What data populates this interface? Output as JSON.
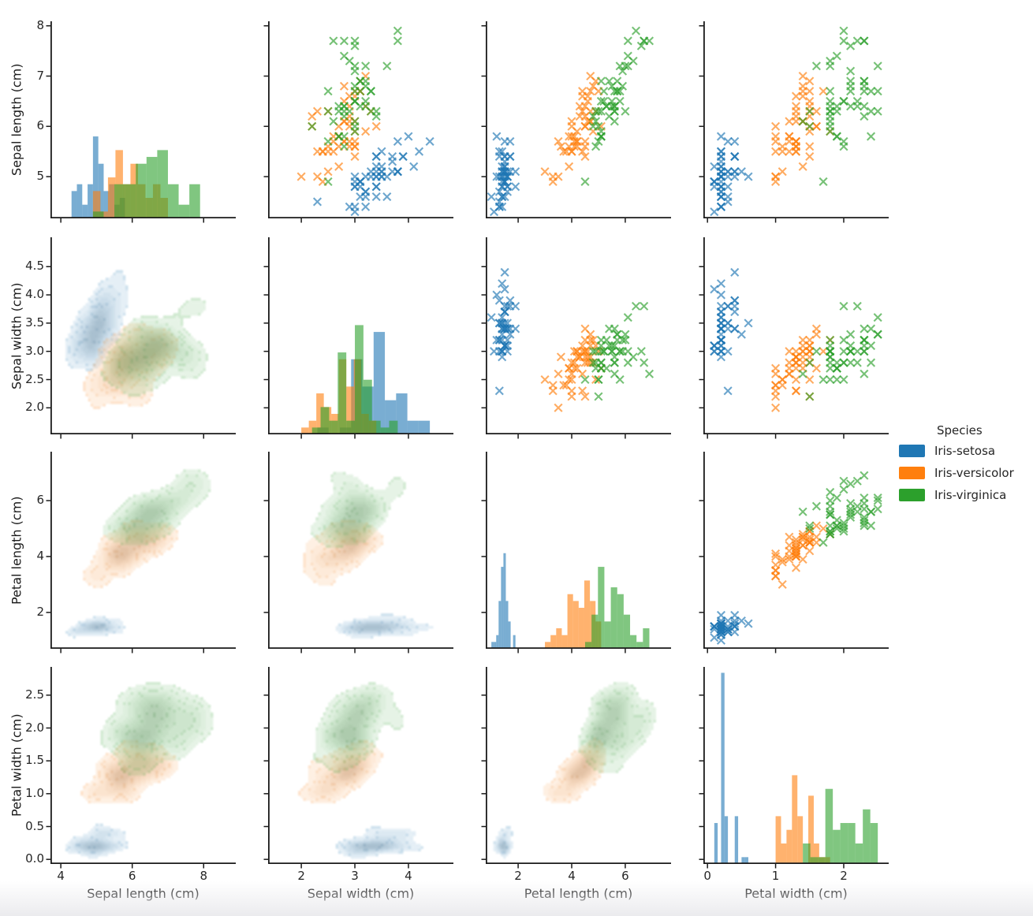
{
  "figure": {
    "background": "#ffffff"
  },
  "chart_data": {
    "type": "pairplot",
    "title": "",
    "variables": [
      "Sepal length (cm)",
      "Sepal width (cm)",
      "Petal length (cm)",
      "Petal width (cm)"
    ],
    "species": [
      "Iris-setosa",
      "Iris-versicolor",
      "Iris-virginica"
    ],
    "species_colors": {
      "Iris-setosa": "#1f77b4",
      "Iris-versicolor": "#ff7f0e",
      "Iris-virginica": "#2ca02c"
    },
    "grid": {
      "diagonal": "histogram",
      "upper_triangle": "scatter-x-markers",
      "lower_triangle": "filled-kde-contours",
      "marker": "x",
      "rows": 4,
      "cols": 4
    },
    "legend": {
      "title": "Species",
      "position": "right-middle",
      "entries": [
        {
          "label": "Iris-setosa",
          "color": "#1f77b4"
        },
        {
          "label": "Iris-versicolor",
          "color": "#ff7f0e"
        },
        {
          "label": "Iris-virginica",
          "color": "#2ca02c"
        }
      ]
    },
    "axes": {
      "x_ticks": [
        [
          4,
          6,
          8
        ],
        [
          2,
          3,
          4
        ],
        [
          2,
          4,
          6
        ],
        [
          0,
          1,
          2
        ]
      ],
      "x_tick_labels": [
        [
          "4",
          "6",
          "8"
        ],
        [
          "2",
          "3",
          "4"
        ],
        [
          "2",
          "4",
          "6"
        ],
        [
          "0",
          "1",
          "2"
        ]
      ],
      "y_ticks": [
        [
          5,
          6,
          7,
          8
        ],
        [
          2.0,
          2.5,
          3.0,
          3.5,
          4.0,
          4.5
        ],
        [
          2,
          4,
          6
        ],
        [
          0.0,
          0.5,
          1.0,
          1.5,
          2.0,
          2.5
        ]
      ],
      "y_tick_labels": [
        [
          "5",
          "6",
          "7",
          "8"
        ],
        [
          "2.0",
          "2.5",
          "3.0",
          "3.5",
          "4.0",
          "4.5"
        ],
        [
          "2",
          "4",
          "6"
        ],
        [
          "0.0",
          "0.5",
          "1.0",
          "1.5",
          "2.0",
          "2.5"
        ]
      ],
      "x_ranges": [
        [
          3.71,
          8.9
        ],
        [
          1.38,
          4.84
        ],
        [
          0.79,
          7.71
        ],
        [
          -0.06,
          2.66
        ]
      ],
      "y_ranges": [
        [
          4.17,
          8.09
        ],
        [
          1.53,
          5.02
        ],
        [
          0.7,
          7.75
        ],
        [
          -0.07,
          2.93
        ]
      ]
    },
    "columns": [
      "sepal_length_cm",
      "sepal_width_cm",
      "petal_length_cm",
      "petal_width_cm"
    ],
    "data": {
      "Iris-setosa": [
        [
          5.1,
          3.5,
          1.4,
          0.2
        ],
        [
          4.9,
          3.0,
          1.4,
          0.2
        ],
        [
          4.7,
          3.2,
          1.3,
          0.2
        ],
        [
          4.6,
          3.1,
          1.5,
          0.2
        ],
        [
          5.0,
          3.6,
          1.4,
          0.2
        ],
        [
          5.4,
          3.9,
          1.7,
          0.4
        ],
        [
          4.6,
          3.4,
          1.4,
          0.3
        ],
        [
          5.0,
          3.4,
          1.5,
          0.2
        ],
        [
          4.4,
          2.9,
          1.4,
          0.2
        ],
        [
          4.9,
          3.1,
          1.5,
          0.1
        ],
        [
          5.4,
          3.7,
          1.5,
          0.2
        ],
        [
          4.8,
          3.4,
          1.6,
          0.2
        ],
        [
          4.8,
          3.0,
          1.4,
          0.1
        ],
        [
          4.3,
          3.0,
          1.1,
          0.1
        ],
        [
          5.8,
          4.0,
          1.2,
          0.2
        ],
        [
          5.7,
          4.4,
          1.5,
          0.4
        ],
        [
          5.4,
          3.9,
          1.3,
          0.4
        ],
        [
          5.1,
          3.5,
          1.4,
          0.3
        ],
        [
          5.7,
          3.8,
          1.7,
          0.3
        ],
        [
          5.1,
          3.8,
          1.5,
          0.3
        ],
        [
          5.4,
          3.4,
          1.7,
          0.2
        ],
        [
          5.1,
          3.7,
          1.5,
          0.4
        ],
        [
          4.6,
          3.6,
          1.0,
          0.2
        ],
        [
          5.1,
          3.3,
          1.7,
          0.5
        ],
        [
          4.8,
          3.4,
          1.9,
          0.2
        ],
        [
          5.0,
          3.0,
          1.6,
          0.2
        ],
        [
          5.0,
          3.4,
          1.6,
          0.4
        ],
        [
          5.2,
          3.5,
          1.5,
          0.2
        ],
        [
          5.2,
          3.4,
          1.4,
          0.2
        ],
        [
          4.7,
          3.2,
          1.6,
          0.2
        ],
        [
          4.8,
          3.1,
          1.6,
          0.2
        ],
        [
          5.4,
          3.4,
          1.5,
          0.4
        ],
        [
          5.2,
          4.1,
          1.5,
          0.1
        ],
        [
          5.5,
          4.2,
          1.4,
          0.2
        ],
        [
          4.9,
          3.1,
          1.5,
          0.1
        ],
        [
          5.0,
          3.2,
          1.2,
          0.2
        ],
        [
          5.5,
          3.5,
          1.3,
          0.2
        ],
        [
          4.9,
          3.1,
          1.5,
          0.1
        ],
        [
          4.4,
          3.0,
          1.3,
          0.2
        ],
        [
          5.1,
          3.4,
          1.5,
          0.2
        ],
        [
          5.0,
          3.5,
          1.3,
          0.3
        ],
        [
          4.5,
          2.3,
          1.3,
          0.3
        ],
        [
          4.4,
          3.2,
          1.3,
          0.2
        ],
        [
          5.0,
          3.5,
          1.6,
          0.6
        ],
        [
          5.1,
          3.8,
          1.9,
          0.4
        ],
        [
          4.8,
          3.0,
          1.4,
          0.3
        ],
        [
          5.1,
          3.8,
          1.6,
          0.2
        ],
        [
          4.6,
          3.2,
          1.4,
          0.2
        ],
        [
          5.3,
          3.7,
          1.5,
          0.2
        ],
        [
          5.0,
          3.3,
          1.4,
          0.2
        ]
      ],
      "Iris-versicolor": [
        [
          7.0,
          3.2,
          4.7,
          1.4
        ],
        [
          6.4,
          3.2,
          4.5,
          1.5
        ],
        [
          6.9,
          3.1,
          4.9,
          1.5
        ],
        [
          5.5,
          2.3,
          4.0,
          1.3
        ],
        [
          6.5,
          2.8,
          4.6,
          1.5
        ],
        [
          5.7,
          2.8,
          4.5,
          1.3
        ],
        [
          6.3,
          3.3,
          4.7,
          1.6
        ],
        [
          4.9,
          2.4,
          3.3,
          1.0
        ],
        [
          6.6,
          2.9,
          4.6,
          1.3
        ],
        [
          5.2,
          2.7,
          3.9,
          1.4
        ],
        [
          5.0,
          2.0,
          3.5,
          1.0
        ],
        [
          5.9,
          3.0,
          4.2,
          1.5
        ],
        [
          6.0,
          2.2,
          4.0,
          1.0
        ],
        [
          6.1,
          2.9,
          4.7,
          1.4
        ],
        [
          5.6,
          2.9,
          3.6,
          1.3
        ],
        [
          6.7,
          3.1,
          4.4,
          1.4
        ],
        [
          5.6,
          3.0,
          4.5,
          1.5
        ],
        [
          5.8,
          2.7,
          4.1,
          1.0
        ],
        [
          6.2,
          2.2,
          4.5,
          1.5
        ],
        [
          5.6,
          2.5,
          3.9,
          1.1
        ],
        [
          5.9,
          3.2,
          4.8,
          1.8
        ],
        [
          6.1,
          2.8,
          4.0,
          1.3
        ],
        [
          6.3,
          2.5,
          4.9,
          1.5
        ],
        [
          6.1,
          2.8,
          4.7,
          1.2
        ],
        [
          6.4,
          2.9,
          4.3,
          1.3
        ],
        [
          6.6,
          3.0,
          4.4,
          1.4
        ],
        [
          6.8,
          2.8,
          4.8,
          1.4
        ],
        [
          6.7,
          3.0,
          5.0,
          1.7
        ],
        [
          6.0,
          2.9,
          4.5,
          1.5
        ],
        [
          5.7,
          2.6,
          3.5,
          1.0
        ],
        [
          5.5,
          2.4,
          3.8,
          1.1
        ],
        [
          5.5,
          2.4,
          3.7,
          1.0
        ],
        [
          5.8,
          2.7,
          3.9,
          1.2
        ],
        [
          6.0,
          2.7,
          5.1,
          1.6
        ],
        [
          5.4,
          3.0,
          4.5,
          1.5
        ],
        [
          6.0,
          3.4,
          4.5,
          1.6
        ],
        [
          6.7,
          3.1,
          4.7,
          1.5
        ],
        [
          6.3,
          2.3,
          4.4,
          1.3
        ],
        [
          5.6,
          3.0,
          4.1,
          1.3
        ],
        [
          5.5,
          2.5,
          4.0,
          1.3
        ],
        [
          5.5,
          2.6,
          4.4,
          1.2
        ],
        [
          6.1,
          3.0,
          4.6,
          1.4
        ],
        [
          5.8,
          2.6,
          4.0,
          1.2
        ],
        [
          5.0,
          2.3,
          3.3,
          1.0
        ],
        [
          5.6,
          2.7,
          4.2,
          1.3
        ],
        [
          5.7,
          3.0,
          4.2,
          1.2
        ],
        [
          5.7,
          2.9,
          4.2,
          1.3
        ],
        [
          6.2,
          2.9,
          4.3,
          1.3
        ],
        [
          5.1,
          2.5,
          3.0,
          1.1
        ],
        [
          5.7,
          2.8,
          4.1,
          1.3
        ]
      ],
      "Iris-virginica": [
        [
          6.3,
          3.3,
          6.0,
          2.5
        ],
        [
          5.8,
          2.7,
          5.1,
          1.9
        ],
        [
          7.1,
          3.0,
          5.9,
          2.1
        ],
        [
          6.3,
          2.9,
          5.6,
          1.8
        ],
        [
          6.5,
          3.0,
          5.8,
          2.2
        ],
        [
          7.6,
          3.0,
          6.6,
          2.1
        ],
        [
          4.9,
          2.5,
          4.5,
          1.7
        ],
        [
          7.3,
          2.9,
          6.3,
          1.8
        ],
        [
          6.7,
          2.5,
          5.8,
          1.8
        ],
        [
          7.2,
          3.6,
          6.1,
          2.5
        ],
        [
          6.5,
          3.2,
          5.1,
          2.0
        ],
        [
          6.4,
          2.7,
          5.3,
          1.9
        ],
        [
          6.8,
          3.0,
          5.5,
          2.1
        ],
        [
          5.7,
          2.5,
          5.0,
          2.0
        ],
        [
          5.8,
          2.8,
          5.1,
          2.4
        ],
        [
          6.4,
          3.2,
          5.3,
          2.3
        ],
        [
          6.5,
          3.0,
          5.5,
          1.8
        ],
        [
          7.7,
          3.8,
          6.7,
          2.2
        ],
        [
          7.7,
          2.6,
          6.9,
          2.3
        ],
        [
          6.0,
          2.2,
          5.0,
          1.5
        ],
        [
          6.9,
          3.2,
          5.7,
          2.3
        ],
        [
          5.6,
          2.8,
          4.9,
          2.0
        ],
        [
          7.7,
          2.8,
          6.7,
          2.0
        ],
        [
          6.3,
          2.7,
          4.9,
          1.8
        ],
        [
          6.7,
          3.3,
          5.7,
          2.1
        ],
        [
          7.2,
          3.2,
          6.0,
          1.8
        ],
        [
          6.2,
          2.8,
          4.8,
          1.8
        ],
        [
          6.1,
          3.0,
          4.9,
          1.8
        ],
        [
          6.4,
          2.8,
          5.6,
          2.1
        ],
        [
          7.2,
          3.0,
          5.8,
          1.6
        ],
        [
          7.4,
          2.8,
          6.1,
          1.9
        ],
        [
          7.9,
          3.8,
          6.4,
          2.0
        ],
        [
          6.4,
          2.8,
          5.6,
          2.2
        ],
        [
          6.3,
          2.8,
          5.1,
          1.5
        ],
        [
          6.1,
          2.6,
          5.6,
          1.4
        ],
        [
          7.7,
          3.0,
          6.1,
          2.3
        ],
        [
          6.3,
          3.4,
          5.6,
          2.4
        ],
        [
          6.4,
          3.1,
          5.5,
          1.8
        ],
        [
          6.0,
          3.0,
          4.8,
          1.8
        ],
        [
          6.9,
          3.1,
          5.4,
          2.1
        ],
        [
          6.7,
          3.1,
          5.6,
          2.4
        ],
        [
          6.9,
          3.1,
          5.1,
          2.3
        ],
        [
          5.8,
          2.7,
          5.1,
          1.9
        ],
        [
          6.8,
          3.2,
          5.9,
          2.3
        ],
        [
          6.7,
          3.3,
          5.7,
          2.5
        ],
        [
          6.7,
          3.0,
          5.2,
          2.3
        ],
        [
          6.3,
          2.5,
          5.0,
          1.9
        ],
        [
          6.5,
          3.0,
          5.2,
          2.0
        ],
        [
          6.2,
          3.4,
          5.4,
          2.3
        ],
        [
          5.9,
          3.0,
          5.1,
          1.8
        ]
      ]
    }
  }
}
